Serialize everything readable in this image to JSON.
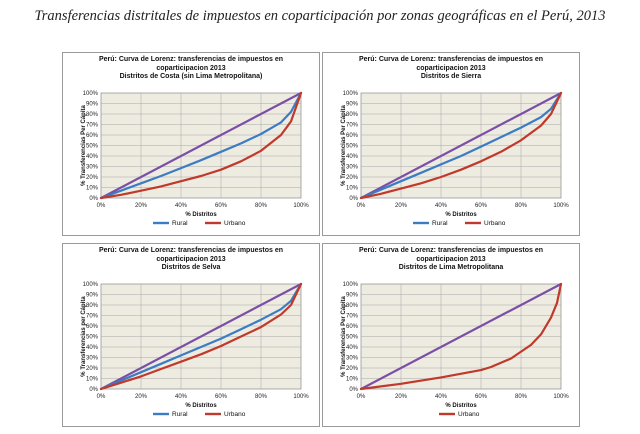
{
  "page": {
    "title": "Transferencias distritales de impuestos en coparticipación por zonas geográficas en el Perú, 2013"
  },
  "colors": {
    "rural": "#3b7cc4",
    "urbano": "#c0392b",
    "equidad": "#7b4fa6",
    "plot_bg": "#eeece1",
    "grid": "#a6a6a6"
  },
  "chart_data": [
    {
      "type": "line",
      "title_lines": [
        "Perú: Curva de Lorenz: transferencias de impuestos en",
        "coparticipacion 2013",
        "Distritos de Costa (sin Lima Metropolitana)"
      ],
      "xlabel": "% Distritos",
      "ylabel": "% Transferencias Per Cápita",
      "xlim": [
        0,
        100
      ],
      "ylim": [
        0,
        100
      ],
      "x_ticks": [
        "0%",
        "20%",
        "40%",
        "60%",
        "80%",
        "100%"
      ],
      "y_ticks": [
        "0%",
        "10%",
        "20%",
        "30%",
        "40%",
        "50%",
        "60%",
        "70%",
        "80%",
        "90%",
        "100%"
      ],
      "grid": true,
      "legend_position": "bottom",
      "series": [
        {
          "key": "equidad",
          "name": "",
          "in_legend": false,
          "x": [
            0,
            100
          ],
          "y": [
            0,
            100
          ]
        },
        {
          "key": "rural",
          "name": "Rural",
          "in_legend": true,
          "x": [
            0,
            10,
            20,
            30,
            40,
            50,
            60,
            70,
            80,
            90,
            95,
            100
          ],
          "y": [
            0,
            7,
            14,
            21,
            28.5,
            36,
            44,
            52,
            61,
            72,
            82,
            100
          ]
        },
        {
          "key": "urbano",
          "name": "Urbano",
          "in_legend": true,
          "x": [
            0,
            10,
            20,
            30,
            40,
            50,
            60,
            70,
            80,
            90,
            95,
            100
          ],
          "y": [
            0,
            3,
            7,
            11,
            16,
            21,
            27,
            35,
            45,
            60,
            73,
            100
          ]
        }
      ]
    },
    {
      "type": "line",
      "title_lines": [
        "Perú: Curva de Lorenz: transferencias de impuestos en",
        "coparticipacion 2013",
        "Distritos de Sierra"
      ],
      "xlabel": "% Distritos",
      "ylabel": "% Transferencias Per Cápita",
      "xlim": [
        0,
        100
      ],
      "ylim": [
        0,
        100
      ],
      "x_ticks": [
        "0%",
        "20%",
        "40%",
        "60%",
        "80%",
        "100%"
      ],
      "y_ticks": [
        "0%",
        "10%",
        "20%",
        "30%",
        "40%",
        "50%",
        "60%",
        "70%",
        "80%",
        "90%",
        "100%"
      ],
      "grid": true,
      "legend_position": "bottom",
      "series": [
        {
          "key": "equidad",
          "name": "",
          "in_legend": false,
          "x": [
            0,
            100
          ],
          "y": [
            0,
            100
          ]
        },
        {
          "key": "rural",
          "name": "Rural",
          "in_legend": true,
          "x": [
            0,
            10,
            20,
            30,
            40,
            50,
            60,
            70,
            80,
            90,
            95,
            100
          ],
          "y": [
            0,
            8,
            16,
            24,
            32,
            40,
            49,
            58,
            67,
            77,
            85,
            100
          ]
        },
        {
          "key": "urbano",
          "name": "Urbano",
          "in_legend": true,
          "x": [
            0,
            10,
            20,
            30,
            40,
            50,
            60,
            70,
            80,
            90,
            95,
            100
          ],
          "y": [
            0,
            4,
            9,
            14,
            20,
            27,
            35,
            44,
            55,
            69,
            80,
            100
          ]
        }
      ]
    },
    {
      "type": "line",
      "title_lines": [
        "Perú: Curva de Lorenz: transferencias de impuestos en",
        "coparticipacion 2013",
        "Distritos de Selva"
      ],
      "xlabel": "% Distritos",
      "ylabel": "% Transferencias per Cápita",
      "xlim": [
        0,
        100
      ],
      "ylim": [
        0,
        100
      ],
      "x_ticks": [
        "0%",
        "20%",
        "40%",
        "60%",
        "80%",
        "100%"
      ],
      "y_ticks": [
        "0%",
        "10%",
        "20%",
        "30%",
        "40%",
        "50%",
        "60%",
        "70%",
        "80%",
        "90%",
        "100%"
      ],
      "grid": true,
      "legend_position": "bottom",
      "series": [
        {
          "key": "equidad",
          "name": "",
          "in_legend": false,
          "x": [
            0,
            100
          ],
          "y": [
            0,
            100
          ]
        },
        {
          "key": "rural",
          "name": "Rural",
          "in_legend": true,
          "x": [
            0,
            10,
            20,
            30,
            40,
            50,
            60,
            70,
            80,
            90,
            95,
            100
          ],
          "y": [
            0,
            8,
            16,
            24,
            32,
            40,
            48,
            57,
            66,
            76,
            84,
            100
          ]
        },
        {
          "key": "urbano",
          "name": "Urbano",
          "in_legend": true,
          "x": [
            0,
            10,
            20,
            30,
            40,
            50,
            60,
            70,
            80,
            90,
            95,
            100
          ],
          "y": [
            0,
            6,
            12,
            19,
            26,
            33,
            41,
            50,
            59,
            71,
            80,
            100
          ]
        }
      ]
    },
    {
      "type": "line",
      "title_lines": [
        "Perú: Curva de Lorenz: transferencias de impuestos en",
        "coparticipacion 2013",
        "Distritos de Lima Metropolitana"
      ],
      "xlabel": "% Distritos",
      "ylabel": "% Transferencias Per Cápita",
      "xlim": [
        0,
        100
      ],
      "ylim": [
        0,
        100
      ],
      "x_ticks": [
        "0%",
        "20%",
        "40%",
        "60%",
        "80%",
        "100%"
      ],
      "y_ticks": [
        "0%",
        "10%",
        "20%",
        "30%",
        "40%",
        "50%",
        "60%",
        "70%",
        "80%",
        "90%",
        "100%"
      ],
      "grid": true,
      "legend_position": "bottom",
      "series": [
        {
          "key": "equidad",
          "name": "",
          "in_legend": false,
          "x": [
            0,
            100
          ],
          "y": [
            0,
            100
          ]
        },
        {
          "key": "urbano",
          "name": "Urbano",
          "in_legend": true,
          "x": [
            0,
            20,
            40,
            60,
            65,
            75,
            85,
            90,
            95,
            98,
            100
          ],
          "y": [
            0,
            5,
            11,
            18,
            21,
            29,
            42,
            52,
            68,
            82,
            100
          ]
        }
      ]
    }
  ]
}
